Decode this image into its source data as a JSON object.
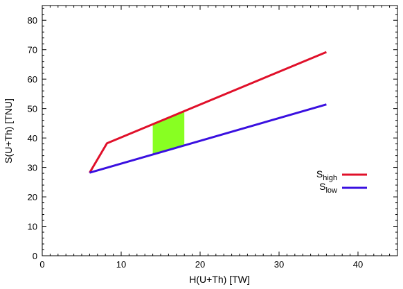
{
  "chart_data": {
    "type": "line",
    "title": "",
    "xlabel": "H(U+Th) [TW]",
    "ylabel": "S(U+Th) [TNU]",
    "xlim": [
      0,
      45
    ],
    "ylim": [
      0,
      85
    ],
    "x_ticks": [
      0,
      10,
      20,
      30,
      40
    ],
    "y_ticks": [
      0,
      10,
      20,
      30,
      40,
      50,
      60,
      70,
      80
    ],
    "grid": false,
    "legend_position": "right",
    "series": [
      {
        "name": "S_high",
        "label_main": "S",
        "label_sub": "high",
        "color": "#e0102a",
        "points": [
          [
            6.0,
            28.2
          ],
          [
            8.2,
            38.2
          ],
          [
            36.0,
            69.2
          ]
        ]
      },
      {
        "name": "S_low",
        "label_main": "S",
        "label_sub": "low",
        "color": "#3a10e0",
        "points": [
          [
            6.0,
            28.2
          ],
          [
            36.0,
            51.4
          ]
        ]
      }
    ],
    "shaded_region": {
      "color": "#88ff22",
      "points": [
        [
          14.0,
          45.0
        ],
        [
          18.0,
          49.2
        ],
        [
          18.0,
          37.6
        ],
        [
          14.0,
          34.6
        ]
      ]
    }
  }
}
